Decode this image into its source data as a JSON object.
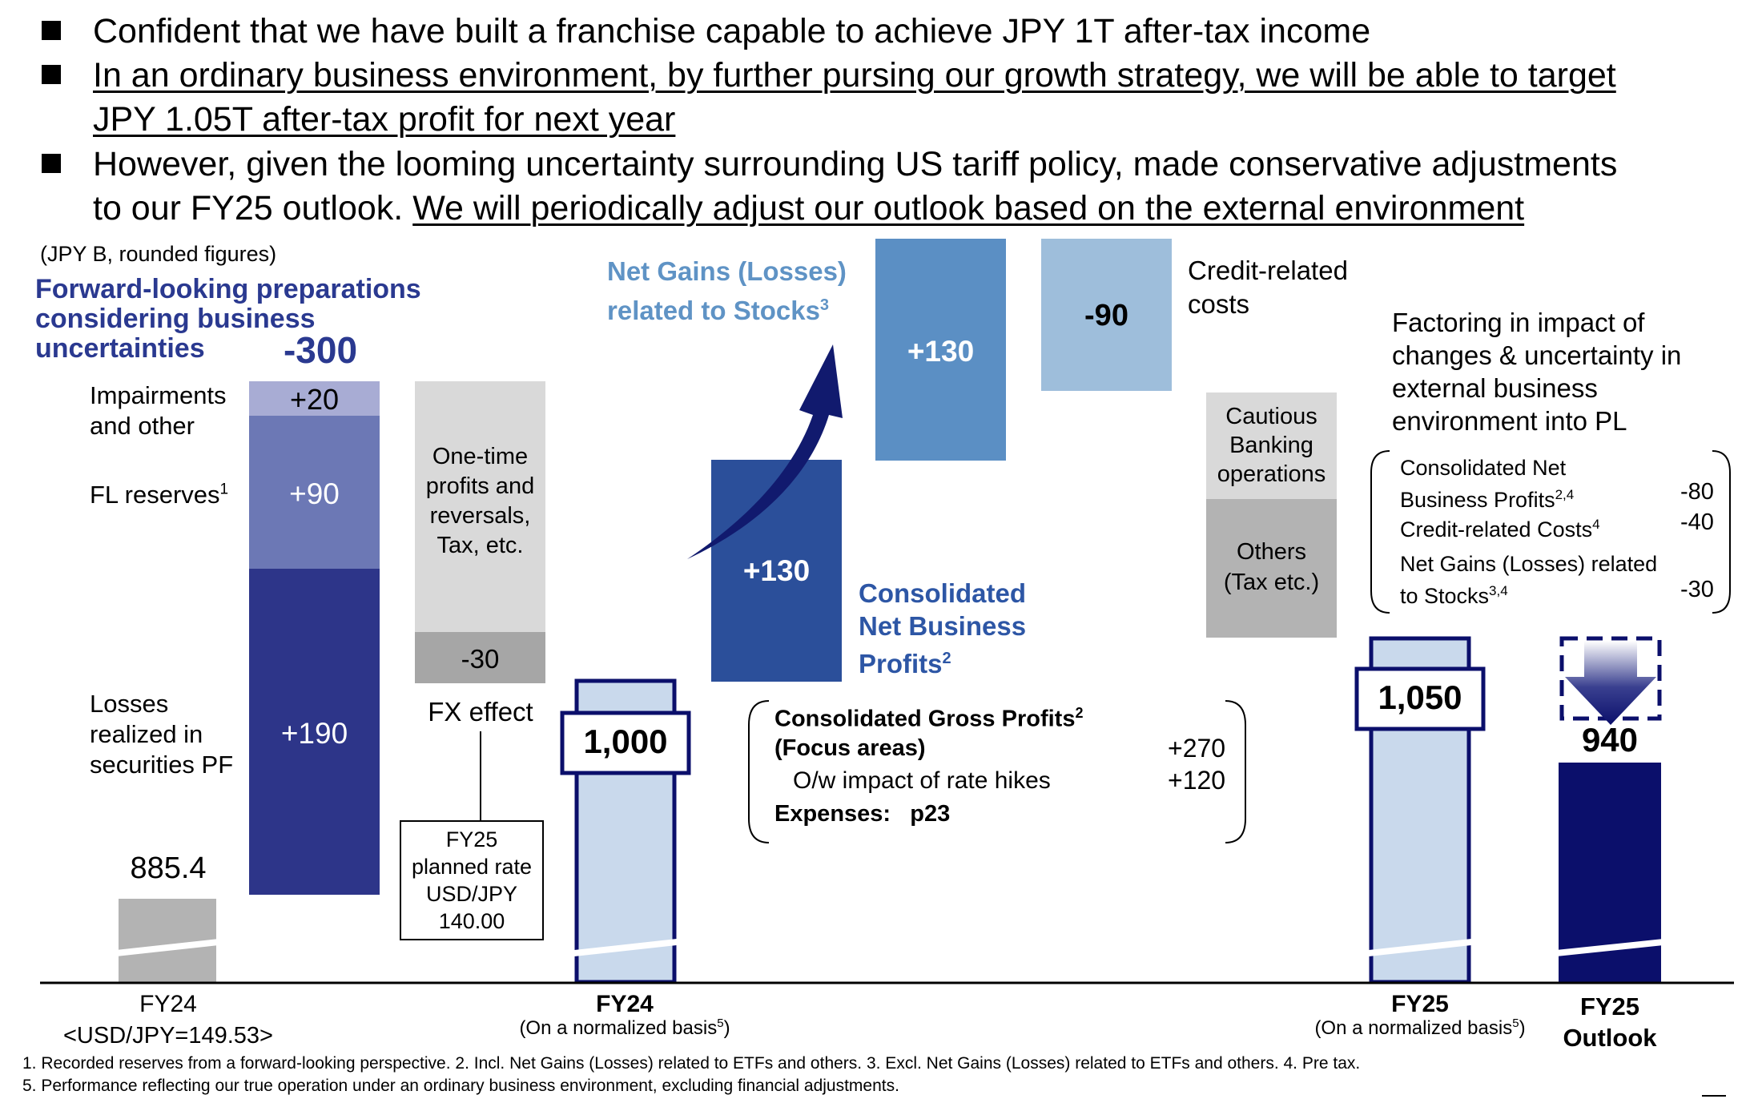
{
  "bullets": [
    {
      "text": "Confident that we have built a franchise capable to achieve JPY 1T after-tax income"
    },
    {
      "text_line1": "In an ordinary business environment, by further pursing our growth strategy, we will be able to target",
      "text_line2": "JPY 1.05T after-tax profit for next year"
    },
    {
      "text_line1": "However, given the looming uncertainty surrounding US tariff policy, made conservative adjustments",
      "text_line2a": "to our FY25 outlook. ",
      "text_line2b": "We will periodically adjust our outlook based on the external environment"
    }
  ],
  "unit_note": "(JPY B, rounded figures)",
  "fwd_heading": [
    "Forward-looking preparations",
    "considering business",
    "uncertainties"
  ],
  "fwd_total": "-300",
  "side_labels": {
    "impairments": [
      "Impairments",
      "and other"
    ],
    "fl_reserves": "FL reserves",
    "fl_sup": "1",
    "losses": [
      "Losses",
      "realized in",
      "securities PF"
    ]
  },
  "one_time": [
    "One-time",
    "profits and",
    "reversals,",
    "Tax, etc."
  ],
  "fx_effect": "FX effect",
  "fx_box": [
    "FY25",
    "planned rate",
    "USD/JPY",
    "140.00"
  ],
  "stocks_heading": [
    "Net Gains (Losses)",
    "related to Stocks"
  ],
  "stocks_sup": "3",
  "cnbp_heading": [
    "Consolidated",
    "Net Business",
    "Profits"
  ],
  "cnbp_sup": "2",
  "credit_label": [
    "Credit-related",
    "costs"
  ],
  "cautious_label": [
    "Cautious",
    "Banking",
    "operations"
  ],
  "others_label": [
    "Others",
    "(Tax etc.)"
  ],
  "gross_box": {
    "line1": "Consolidated Gross Profits",
    "line1_sup": "2",
    "line2": "(Focus areas)",
    "line2_val": "+270",
    "line3": "O/w impact of rate hikes",
    "line3_val": "+120",
    "line4": "Expenses:   p23"
  },
  "factoring_text": [
    "Factoring in impact of",
    "changes & uncertainty in",
    "external business",
    "environment into PL"
  ],
  "factoring_items": [
    {
      "label1": "Consolidated Net",
      "label2": "Business Profits",
      "sup": "2,4",
      "value": "-80"
    },
    {
      "label1": "Credit-related Costs",
      "label2": "",
      "sup": "4",
      "value": "-40"
    },
    {
      "label1": "Net Gains (Losses) related",
      "label2": "to Stocks",
      "sup": "3,4",
      "value": "-30"
    }
  ],
  "x_labels": {
    "fy24": "FY24",
    "fy24_rate": "<USD/JPY=149.53>",
    "fy24_norm": "FY24",
    "fy24_norm_sub": "(On a normalized basis",
    "fy24_norm_sup": "5",
    "fy25_norm": "FY25",
    "fy25_norm_sub": "(On a normalized basis",
    "fy25_norm_sup": "5",
    "fy25_outlook": [
      "FY25",
      "Outlook"
    ]
  },
  "footnotes": [
    "1. Recorded reserves from a forward-looking perspective. 2. Incl. Net Gains (Losses) related to ETFs and others. 3. Excl. Net Gains (Losses) related to ETFs and others. 4. Pre tax.",
    "5. Performance reflecting our true operation under an ordinary business environment, excluding financial adjustments."
  ],
  "chart_data": {
    "type": "bar",
    "subtype": "waterfall",
    "unit": "JPY B, rounded figures",
    "steps": [
      {
        "name": "FY24",
        "value": 885.4,
        "label": "885.4",
        "kind": "total",
        "color": "#b3b3b3"
      },
      {
        "name": "Impairments and other",
        "value": 20,
        "label": "+20",
        "kind": "increase",
        "group": "Forward-looking preparations considering business uncertainties",
        "color": "#a8acd4"
      },
      {
        "name": "FL reserves",
        "value": 90,
        "label": "+90",
        "kind": "increase",
        "group": "Forward-looking preparations considering business uncertainties",
        "color": "#6c78b5"
      },
      {
        "name": "Losses realized in securities PF",
        "value": 190,
        "label": "+190",
        "kind": "increase",
        "group": "Forward-looking preparations considering business uncertainties",
        "color": "#2d3589"
      },
      {
        "name": "One-time profits and reversals, Tax, etc.",
        "value": null,
        "label": "",
        "kind": "decrease",
        "color": "#d9d9d9"
      },
      {
        "name": "FX effect",
        "value": -30,
        "label": "-30",
        "kind": "decrease",
        "color": "#a6a6a6"
      },
      {
        "name": "FY24 (On a normalized basis)",
        "value": 1000,
        "label": "1,000",
        "kind": "total",
        "color": "#c9d9ec"
      },
      {
        "name": "Consolidated Net Business Profits",
        "value": 130,
        "label": "+130",
        "kind": "increase",
        "color": "#2b4f9a"
      },
      {
        "name": "Net Gains (Losses) related to Stocks",
        "value": 130,
        "label": "+130",
        "kind": "increase",
        "color": "#5b8fc4"
      },
      {
        "name": "Credit-related costs",
        "value": -90,
        "label": "-90",
        "kind": "decrease",
        "color": "#9ebedb"
      },
      {
        "name": "Cautious Banking operations",
        "value": null,
        "label": "",
        "kind": "decrease",
        "color": "#d9d9d9"
      },
      {
        "name": "Others (Tax etc.)",
        "value": null,
        "label": "",
        "kind": "decrease",
        "color": "#b3b3b3"
      },
      {
        "name": "FY25 (On a normalized basis)",
        "value": 1050,
        "label": "1,050",
        "kind": "total",
        "color": "#c9d9ec"
      },
      {
        "name": "FY25 Outlook",
        "value": 940,
        "label": "940",
        "kind": "total",
        "color": "#0b0f6b"
      }
    ],
    "group_total": {
      "name": "Forward-looking preparations considering business uncertainties",
      "label": "-300"
    }
  },
  "colors": {
    "navy": "#0b0f6b",
    "dark_blue": "#2d3589",
    "mid_blue": "#6c78b5",
    "light_purple": "#a8acd4",
    "light_grey": "#d9d9d9",
    "grey": "#b3b3b3",
    "mid_grey": "#a6a6a6",
    "pale_blue": "#c9d9ec",
    "cnbp_blue": "#2b4f9a",
    "stocks_blue": "#5b8fc4",
    "credit_blue": "#9ebedb",
    "heading_blue": "#2a3990",
    "heading_light_blue": "#5f93c5"
  }
}
